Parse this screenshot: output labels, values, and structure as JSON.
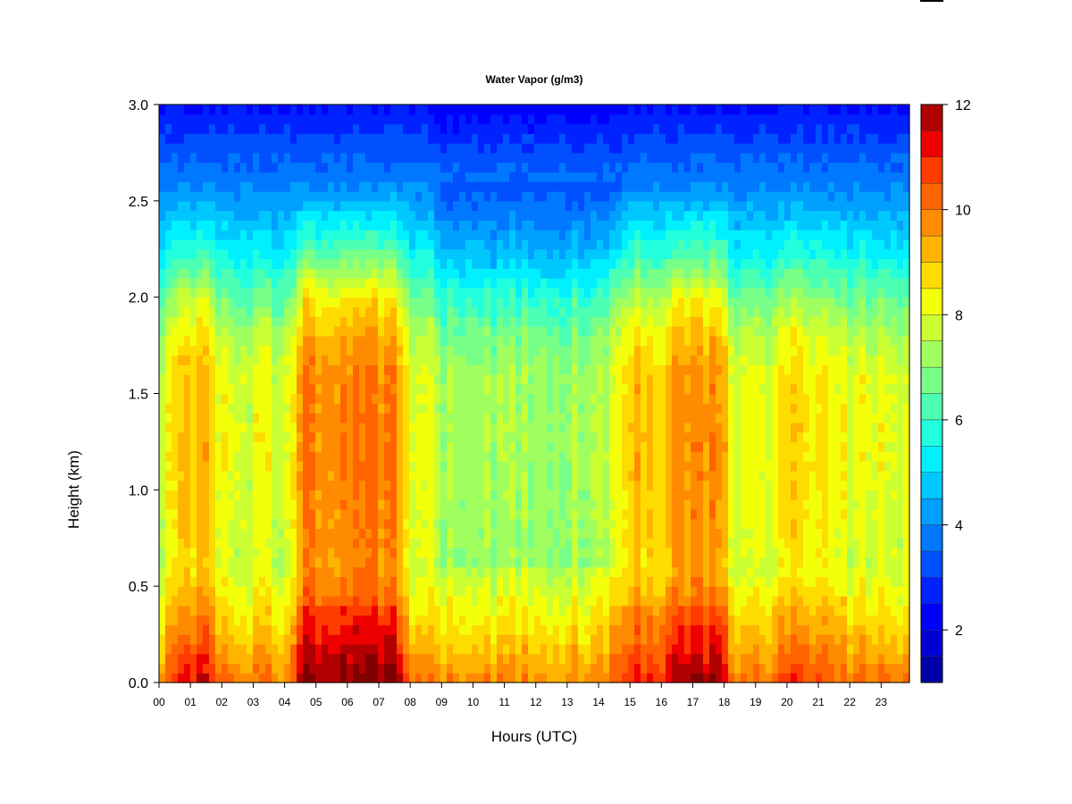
{
  "chart_data": {
    "type": "heatmap",
    "title": "Water Vapor (g/m3)",
    "xlabel": "Hours (UTC)",
    "ylabel": "Height (km)",
    "x_ticks": [
      "00",
      "01",
      "02",
      "03",
      "04",
      "05",
      "06",
      "07",
      "08",
      "09",
      "10",
      "11",
      "12",
      "13",
      "14",
      "15",
      "16",
      "17",
      "18",
      "19",
      "20",
      "21",
      "22",
      "23"
    ],
    "xlim": [
      0,
      23.9
    ],
    "y_ticks": [
      "0.0",
      "0.5",
      "1.0",
      "1.5",
      "2.0",
      "2.5",
      "3.0"
    ],
    "ylim": [
      0,
      3.0
    ],
    "colorbar": {
      "ticks": [
        "2",
        "4",
        "6",
        "8",
        "10",
        "12"
      ],
      "range": [
        1,
        12
      ],
      "levels": [
        1,
        1.5,
        2,
        2.5,
        3,
        3.5,
        4,
        4.5,
        5,
        5.5,
        6,
        6.5,
        7,
        7.5,
        8,
        8.5,
        9,
        9.5,
        10,
        10.5,
        11,
        11.5,
        12
      ],
      "colors": [
        "#00007f",
        "#0000a6",
        "#0000d4",
        "#0000ff",
        "#0022ff",
        "#0050ff",
        "#0078ff",
        "#00a0ff",
        "#00c8ff",
        "#00f0ff",
        "#22ffdd",
        "#4dffb2",
        "#77ff88",
        "#a0ff5e",
        "#caff34",
        "#f4ff0a",
        "#ffdc00",
        "#ffb400",
        "#ff8c00",
        "#ff6400",
        "#ff3c00",
        "#ef0000",
        "#b00000",
        "#7f0000"
      ]
    },
    "profile_height_km": [
      0.0,
      0.1,
      0.25,
      0.4,
      0.6,
      0.8,
      1.2,
      1.6,
      1.8,
      2.0,
      2.2,
      2.5,
      2.8,
      3.0
    ],
    "profile_value": [
      10.0,
      9.6,
      9.0,
      8.5,
      7.8,
      8.0,
      8.1,
      8.0,
      7.5,
      6.6,
      5.5,
      4.2,
      3.2,
      2.4
    ],
    "moist_episodes": [
      {
        "hours": [
          0.5,
          1.6
        ],
        "strength": 1.0
      },
      {
        "hours": [
          4.5,
          7.6
        ],
        "strength": 1.8
      },
      {
        "hours": [
          14.6,
          16.2
        ],
        "strength": 1.0
      },
      {
        "hours": [
          16.3,
          18.0
        ],
        "strength": 1.5
      },
      {
        "hours": [
          19.8,
          21.5
        ],
        "strength": 0.6
      }
    ],
    "dry_episodes": [
      {
        "hours": [
          9.0,
          14.5
        ],
        "strength": 0.9
      }
    ]
  }
}
